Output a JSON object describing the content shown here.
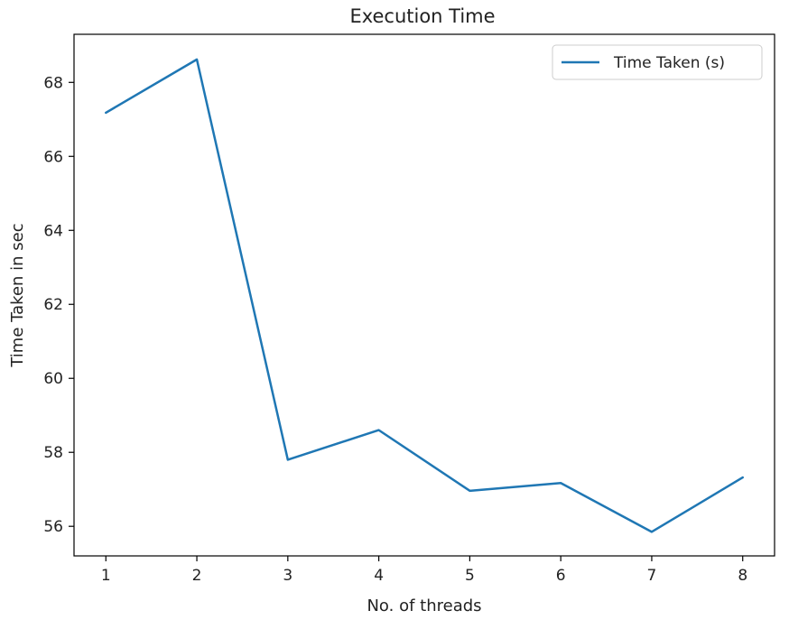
{
  "chart_data": {
    "type": "line",
    "title": "Execution Time",
    "xlabel": "No. of threads",
    "ylabel": "Time Taken in sec",
    "x": [
      1,
      2,
      3,
      4,
      5,
      6,
      7,
      8
    ],
    "series": [
      {
        "name": "Time Taken (s)",
        "color": "#1f77b4",
        "values": [
          67.18,
          68.62,
          57.8,
          58.6,
          56.96,
          57.17,
          55.85,
          57.32
        ]
      }
    ],
    "xticks": [
      1,
      2,
      3,
      4,
      5,
      6,
      7,
      8
    ],
    "yticks": [
      56,
      58,
      60,
      62,
      64,
      66,
      68
    ],
    "xlim": [
      0.65,
      8.35
    ],
    "ylim": [
      55.2,
      69.3
    ],
    "grid": false,
    "legend": "top-right"
  }
}
